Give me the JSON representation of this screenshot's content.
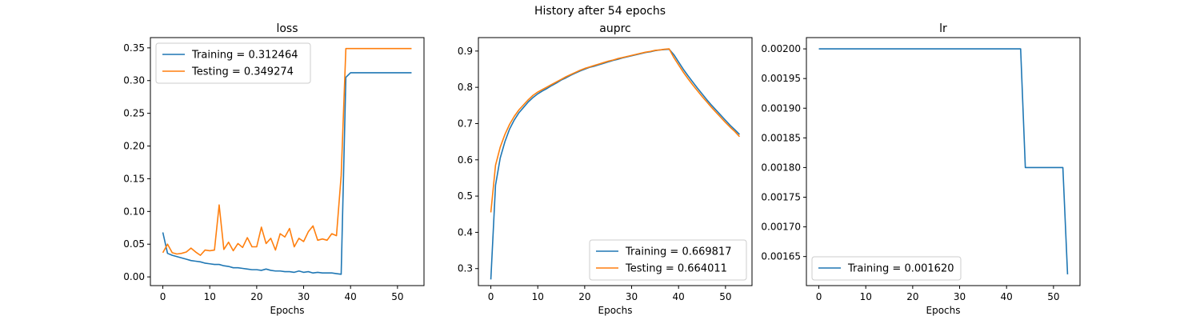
{
  "figure": {
    "suptitle": "History after 54 epochs"
  },
  "colors": {
    "training": "#1f77b4",
    "testing": "#ff7f0e",
    "axis": "#000000"
  },
  "chart_data": [
    {
      "type": "line",
      "title": "loss",
      "xlabel": "Epochs",
      "ylabel": "",
      "xlim": [
        -2.65,
        55.65
      ],
      "ylim": [
        -0.0133,
        0.3657
      ],
      "xticks": [
        0,
        10,
        20,
        30,
        40,
        50
      ],
      "xtick_labels": [
        "0",
        "10",
        "20",
        "30",
        "40",
        "50"
      ],
      "yticks": [
        0.0,
        0.05,
        0.1,
        0.15,
        0.2,
        0.25,
        0.3,
        0.35
      ],
      "ytick_labels": [
        "0.00",
        "0.05",
        "0.10",
        "0.15",
        "0.20",
        "0.25",
        "0.30",
        "0.35"
      ],
      "legend_position": "upper left",
      "grid": false,
      "series": [
        {
          "name": "Training = 0.312464",
          "color_key": "training",
          "x": [
            0,
            1,
            2,
            3,
            4,
            5,
            6,
            7,
            8,
            9,
            10,
            11,
            12,
            13,
            14,
            15,
            16,
            17,
            18,
            19,
            20,
            21,
            22,
            23,
            24,
            25,
            26,
            27,
            28,
            29,
            30,
            31,
            32,
            33,
            34,
            35,
            36,
            37,
            38,
            39,
            40,
            41,
            42,
            43,
            44,
            45,
            46,
            47,
            48,
            49,
            50,
            51,
            52,
            53
          ],
          "y": [
            0.068,
            0.036,
            0.033,
            0.031,
            0.029,
            0.027,
            0.025,
            0.024,
            0.023,
            0.021,
            0.02,
            0.019,
            0.019,
            0.017,
            0.016,
            0.014,
            0.014,
            0.013,
            0.012,
            0.011,
            0.011,
            0.01,
            0.012,
            0.01,
            0.009,
            0.009,
            0.008,
            0.008,
            0.007,
            0.009,
            0.007,
            0.008,
            0.006,
            0.007,
            0.006,
            0.006,
            0.006,
            0.005,
            0.004,
            0.305,
            0.312,
            0.312,
            0.312,
            0.312,
            0.312,
            0.312,
            0.312,
            0.312,
            0.312,
            0.312,
            0.312,
            0.312,
            0.312,
            0.312
          ]
        },
        {
          "name": "Testing = 0.349274",
          "color_key": "testing",
          "x": [
            0,
            1,
            2,
            3,
            4,
            5,
            6,
            7,
            8,
            9,
            10,
            11,
            12,
            13,
            14,
            15,
            16,
            17,
            18,
            19,
            20,
            21,
            22,
            23,
            24,
            25,
            26,
            27,
            28,
            29,
            30,
            31,
            32,
            33,
            34,
            35,
            36,
            37,
            38,
            39,
            40,
            41,
            42,
            43,
            44,
            45,
            46,
            47,
            48,
            49,
            50,
            51,
            52,
            53
          ],
          "y": [
            0.037,
            0.05,
            0.037,
            0.035,
            0.036,
            0.038,
            0.044,
            0.038,
            0.033,
            0.041,
            0.04,
            0.041,
            0.11,
            0.042,
            0.053,
            0.04,
            0.051,
            0.045,
            0.06,
            0.046,
            0.046,
            0.076,
            0.051,
            0.059,
            0.041,
            0.066,
            0.061,
            0.074,
            0.046,
            0.059,
            0.054,
            0.069,
            0.078,
            0.056,
            0.058,
            0.056,
            0.066,
            0.063,
            0.155,
            0.349,
            0.349,
            0.349,
            0.349,
            0.349,
            0.349,
            0.349,
            0.349,
            0.349,
            0.349,
            0.349,
            0.349,
            0.349,
            0.349,
            0.349
          ]
        }
      ]
    },
    {
      "type": "line",
      "title": "auprc",
      "xlabel": "Epochs",
      "ylabel": "",
      "xlim": [
        -2.65,
        55.65
      ],
      "ylim": [
        0.2531,
        0.9371
      ],
      "xticks": [
        0,
        10,
        20,
        30,
        40,
        50
      ],
      "xtick_labels": [
        "0",
        "10",
        "20",
        "30",
        "40",
        "50"
      ],
      "yticks": [
        0.3,
        0.4,
        0.5,
        0.6,
        0.7,
        0.8,
        0.9
      ],
      "ytick_labels": [
        "0.3",
        "0.4",
        "0.5",
        "0.6",
        "0.7",
        "0.8",
        "0.9"
      ],
      "legend_position": "lower right",
      "grid": false,
      "series": [
        {
          "name": "Training = 0.669817",
          "color_key": "training",
          "x": [
            0,
            1,
            2,
            3,
            4,
            5,
            6,
            7,
            8,
            9,
            10,
            11,
            12,
            13,
            14,
            15,
            16,
            17,
            18,
            19,
            20,
            21,
            22,
            23,
            24,
            25,
            26,
            27,
            28,
            29,
            30,
            31,
            32,
            33,
            34,
            35,
            36,
            37,
            38,
            39,
            40,
            41,
            42,
            43,
            44,
            45,
            46,
            47,
            48,
            49,
            50,
            51,
            52,
            53
          ],
          "y": [
            0.27,
            0.53,
            0.605,
            0.65,
            0.685,
            0.71,
            0.73,
            0.745,
            0.76,
            0.772,
            0.782,
            0.79,
            0.797,
            0.805,
            0.812,
            0.82,
            0.826,
            0.833,
            0.839,
            0.845,
            0.85,
            0.855,
            0.858,
            0.862,
            0.866,
            0.87,
            0.874,
            0.877,
            0.881,
            0.884,
            0.887,
            0.89,
            0.893,
            0.896,
            0.898,
            0.901,
            0.903,
            0.904,
            0.905,
            0.89,
            0.87,
            0.85,
            0.832,
            0.815,
            0.798,
            0.782,
            0.766,
            0.751,
            0.737,
            0.723,
            0.709,
            0.695,
            0.683,
            0.67
          ]
        },
        {
          "name": "Testing = 0.664011",
          "color_key": "testing",
          "x": [
            0,
            1,
            2,
            3,
            4,
            5,
            6,
            7,
            8,
            9,
            10,
            11,
            12,
            13,
            14,
            15,
            16,
            17,
            18,
            19,
            20,
            21,
            22,
            23,
            24,
            25,
            26,
            27,
            28,
            29,
            30,
            31,
            32,
            33,
            34,
            35,
            36,
            37,
            38,
            39,
            40,
            41,
            42,
            43,
            44,
            45,
            46,
            47,
            48,
            49,
            50,
            51,
            52,
            53
          ],
          "y": [
            0.455,
            0.585,
            0.635,
            0.67,
            0.698,
            0.72,
            0.738,
            0.752,
            0.766,
            0.778,
            0.787,
            0.794,
            0.801,
            0.808,
            0.815,
            0.822,
            0.829,
            0.835,
            0.841,
            0.847,
            0.852,
            0.856,
            0.86,
            0.864,
            0.868,
            0.872,
            0.875,
            0.879,
            0.882,
            0.885,
            0.888,
            0.891,
            0.894,
            0.897,
            0.899,
            0.902,
            0.903,
            0.905,
            0.906,
            0.882,
            0.862,
            0.842,
            0.824,
            0.807,
            0.791,
            0.775,
            0.76,
            0.745,
            0.731,
            0.717,
            0.703,
            0.69,
            0.678,
            0.664
          ]
        }
      ]
    },
    {
      "type": "line",
      "title": "lr",
      "xlabel": "Epochs",
      "ylabel": "",
      "xlim": [
        -2.65,
        55.65
      ],
      "ylim": [
        0.001601,
        0.002019
      ],
      "xticks": [
        0,
        10,
        20,
        30,
        40,
        50
      ],
      "xtick_labels": [
        "0",
        "10",
        "20",
        "30",
        "40",
        "50"
      ],
      "yticks": [
        0.00165,
        0.0017,
        0.00175,
        0.0018,
        0.00185,
        0.0019,
        0.00195,
        0.002
      ],
      "ytick_labels": [
        "0.00165",
        "0.00170",
        "0.00175",
        "0.00180",
        "0.00185",
        "0.00190",
        "0.00195",
        "0.00200"
      ],
      "legend_position": "lower left",
      "grid": false,
      "series": [
        {
          "name": "Training = 0.001620",
          "color_key": "training",
          "x": [
            0,
            1,
            2,
            3,
            4,
            5,
            6,
            7,
            8,
            9,
            10,
            11,
            12,
            13,
            14,
            15,
            16,
            17,
            18,
            19,
            20,
            21,
            22,
            23,
            24,
            25,
            26,
            27,
            28,
            29,
            30,
            31,
            32,
            33,
            34,
            35,
            36,
            37,
            38,
            39,
            40,
            41,
            42,
            43,
            44,
            45,
            46,
            47,
            48,
            49,
            50,
            51,
            52,
            53
          ],
          "y": [
            0.002,
            0.002,
            0.002,
            0.002,
            0.002,
            0.002,
            0.002,
            0.002,
            0.002,
            0.002,
            0.002,
            0.002,
            0.002,
            0.002,
            0.002,
            0.002,
            0.002,
            0.002,
            0.002,
            0.002,
            0.002,
            0.002,
            0.002,
            0.002,
            0.002,
            0.002,
            0.002,
            0.002,
            0.002,
            0.002,
            0.002,
            0.002,
            0.002,
            0.002,
            0.002,
            0.002,
            0.002,
            0.002,
            0.002,
            0.002,
            0.002,
            0.002,
            0.002,
            0.002,
            0.0018,
            0.0018,
            0.0018,
            0.0018,
            0.0018,
            0.0018,
            0.0018,
            0.0018,
            0.0018,
            0.00162
          ]
        }
      ]
    }
  ]
}
